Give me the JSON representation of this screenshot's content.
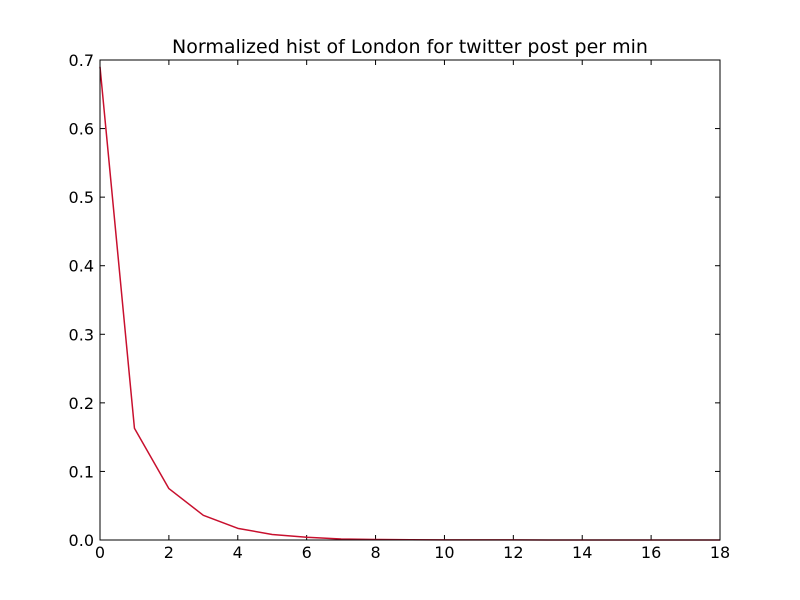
{
  "chart_data": {
    "type": "line",
    "title": "Normalized hist of London for twitter post per min",
    "xlabel": "",
    "ylabel": "",
    "xlim": [
      0,
      18
    ],
    "ylim": [
      0,
      0.7
    ],
    "xticks": [
      0,
      2,
      4,
      6,
      8,
      10,
      12,
      14,
      16,
      18
    ],
    "yticks": [
      0.0,
      0.1,
      0.2,
      0.3,
      0.4,
      0.5,
      0.6,
      0.7
    ],
    "xtick_labels": [
      "0",
      "2",
      "4",
      "6",
      "8",
      "10",
      "12",
      "14",
      "16",
      "18"
    ],
    "ytick_labels": [
      "0.0",
      "0.1",
      "0.2",
      "0.3",
      "0.4",
      "0.5",
      "0.6",
      "0.7"
    ],
    "grid": false,
    "series": [
      {
        "color": "#c8102e",
        "x": [
          0,
          1,
          2,
          3,
          4,
          5,
          6,
          7,
          8,
          9,
          10,
          11,
          12,
          13,
          14,
          15,
          16,
          17,
          18
        ],
        "y": [
          0.69,
          0.163,
          0.075,
          0.036,
          0.017,
          0.008,
          0.004,
          0.0015,
          0.0008,
          0.0004,
          0.0002,
          0.0001,
          0.0001,
          0.0,
          0.0,
          0.0,
          0.0,
          0.0,
          0.0
        ]
      }
    ]
  }
}
